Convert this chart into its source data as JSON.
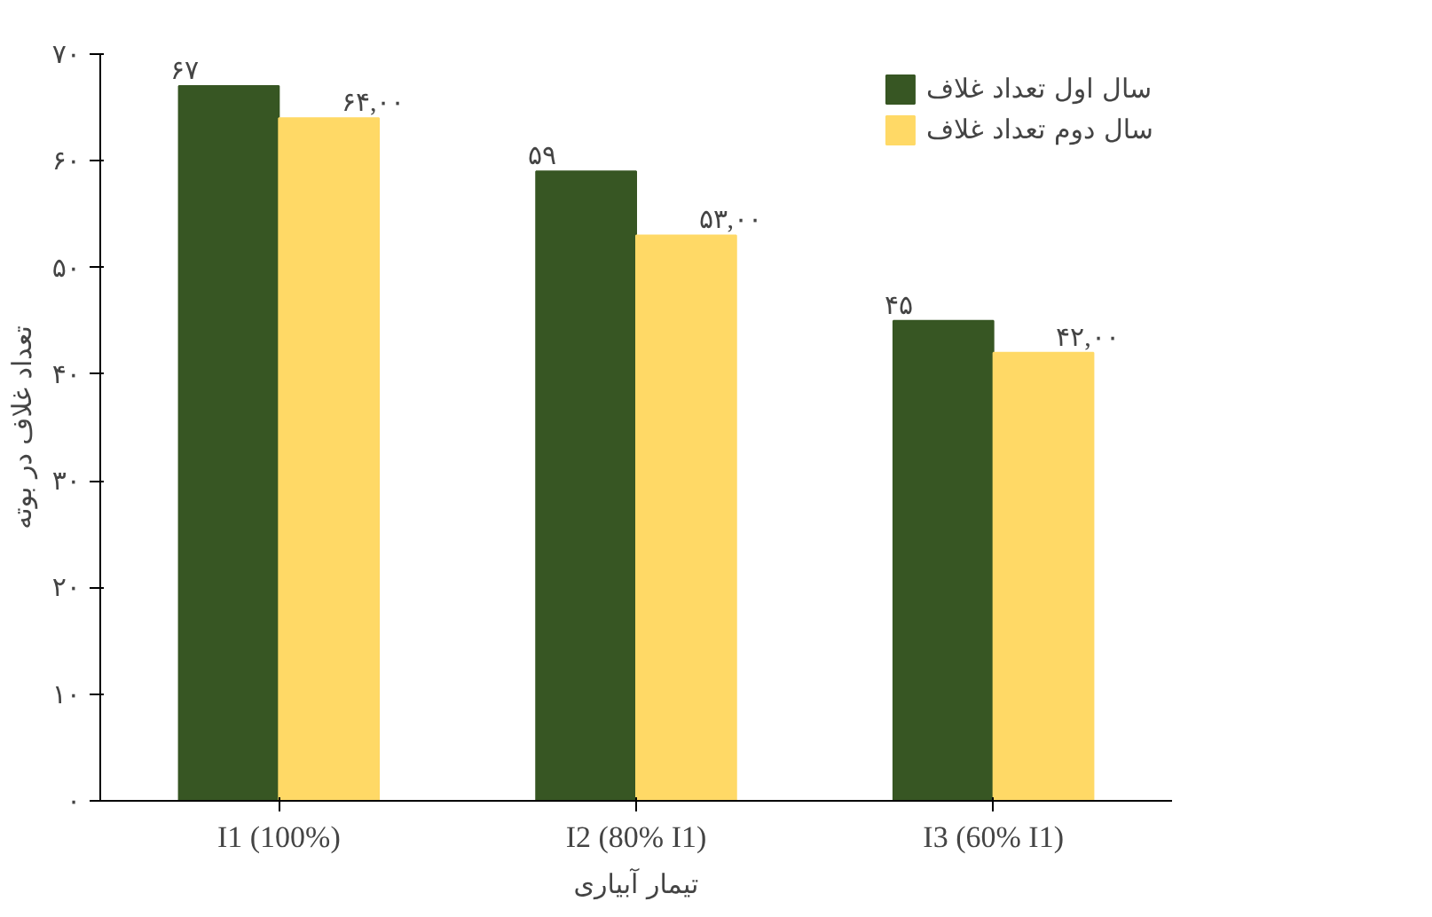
{
  "chart_data": {
    "type": "bar",
    "xlabel": "تیمار آبیاری",
    "ylabel": "تعداد غلاف در بوته",
    "categories": [
      "I1 (100%)",
      "I2 (80% I1)",
      "I3 (60% I1)"
    ],
    "series": [
      {
        "name": "سال اول تعداد غلاف",
        "color": "#375623",
        "values": [
          67,
          59,
          45
        ],
        "value_labels": [
          "۶۷",
          "۵۹",
          "۴۵"
        ]
      },
      {
        "name": "سال دوم تعداد غلاف",
        "color": "#ffd966",
        "values": [
          64,
          53,
          42
        ],
        "value_labels": [
          "۶۴,۰۰",
          "۵۳,۰۰",
          "۴۲,۰۰"
        ]
      }
    ],
    "ylim": [
      0,
      70
    ],
    "yticks": [
      {
        "value": 0,
        "label": "۰"
      },
      {
        "value": 10,
        "label": "۱۰"
      },
      {
        "value": 20,
        "label": "۲۰"
      },
      {
        "value": 30,
        "label": "۳۰"
      },
      {
        "value": 40,
        "label": "۴۰"
      },
      {
        "value": 50,
        "label": "۵۰"
      },
      {
        "value": 60,
        "label": "۶۰"
      },
      {
        "value": 70,
        "label": "۷۰"
      }
    ],
    "grid": false,
    "legend": "top right"
  }
}
